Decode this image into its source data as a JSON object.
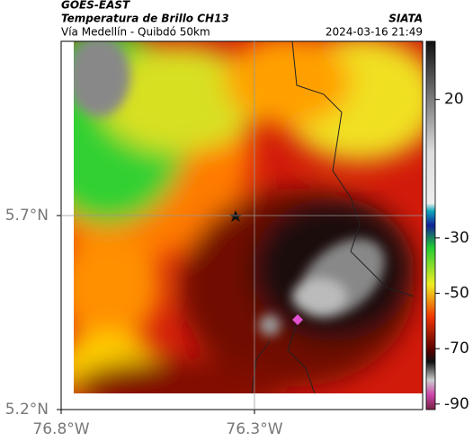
{
  "header": {
    "source": "GOES-EAST",
    "title": "Temperatura de Brillo CH13",
    "subtitle": "Vía Medellín - Quibdó 50km",
    "brand": "SIATA",
    "timestamp": "2024-03-16 21:49"
  },
  "map": {
    "xlim": [
      -76.8,
      -75.865
    ],
    "ylim": [
      5.2,
      6.149
    ],
    "xticks": [
      {
        "value": -76.8,
        "label": "76.8°W"
      },
      {
        "value": -76.3,
        "label": "76.3°W"
      }
    ],
    "yticks": [
      {
        "value": 5.2,
        "label": "5.2°N"
      },
      {
        "value": 5.7,
        "label": "5.7°N"
      }
    ],
    "grid": true
  },
  "colorbar": {
    "lim": [
      -92,
      41
    ],
    "ticks": [
      20,
      -30,
      -50,
      -70,
      -90
    ]
  }
}
